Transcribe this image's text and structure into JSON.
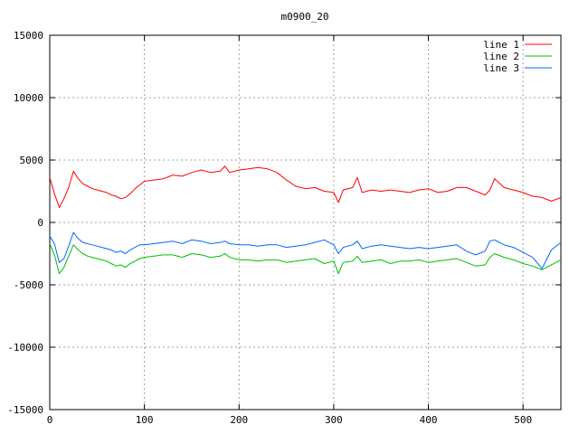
{
  "chart_data": {
    "type": "line",
    "title": "m0900_20",
    "xlabel": "",
    "ylabel": "",
    "xlim": [
      0,
      540
    ],
    "ylim": [
      -15000,
      15000
    ],
    "xticks": [
      0,
      100,
      200,
      300,
      400,
      500
    ],
    "yticks": [
      -15000,
      -10000,
      -5000,
      0,
      5000,
      10000,
      15000
    ],
    "grid": true,
    "legend_position": "top-right",
    "x": [
      0,
      5,
      10,
      15,
      20,
      25,
      30,
      35,
      40,
      45,
      50,
      55,
      60,
      65,
      70,
      75,
      80,
      85,
      90,
      95,
      100,
      110,
      120,
      130,
      140,
      150,
      160,
      170,
      180,
      185,
      190,
      200,
      210,
      220,
      230,
      240,
      250,
      260,
      270,
      280,
      290,
      300,
      305,
      310,
      320,
      325,
      330,
      340,
      350,
      360,
      370,
      380,
      390,
      400,
      410,
      420,
      430,
      440,
      450,
      460,
      465,
      470,
      480,
      490,
      500,
      510,
      520,
      530,
      540
    ],
    "series": [
      {
        "name": "line 1",
        "color": "#ff0000",
        "values": [
          3600,
          2300,
          1200,
          1900,
          2800,
          4100,
          3500,
          3100,
          2900,
          2700,
          2600,
          2500,
          2400,
          2200,
          2100,
          1900,
          2000,
          2300,
          2700,
          3000,
          3300,
          3400,
          3500,
          3800,
          3700,
          4000,
          4200,
          4000,
          4100,
          4500,
          4000,
          4200,
          4300,
          4400,
          4300,
          4000,
          3400,
          2900,
          2700,
          2800,
          2500,
          2400,
          1600,
          2600,
          2800,
          3600,
          2400,
          2600,
          2500,
          2600,
          2500,
          2400,
          2600,
          2700,
          2400,
          2500,
          2800,
          2800,
          2500,
          2200,
          2600,
          3500,
          2800,
          2600,
          2400,
          2100,
          2000,
          1700,
          2000
        ]
      },
      {
        "name": "line 2",
        "color": "#00c000",
        "values": [
          -1700,
          -2600,
          -4100,
          -3600,
          -2700,
          -1800,
          -2200,
          -2500,
          -2700,
          -2800,
          -2900,
          -3000,
          -3100,
          -3300,
          -3500,
          -3400,
          -3600,
          -3300,
          -3100,
          -2900,
          -2800,
          -2700,
          -2600,
          -2600,
          -2800,
          -2500,
          -2600,
          -2800,
          -2700,
          -2500,
          -2800,
          -3000,
          -3000,
          -3100,
          -3000,
          -3000,
          -3200,
          -3100,
          -3000,
          -2900,
          -3300,
          -3100,
          -4100,
          -3200,
          -3100,
          -2700,
          -3200,
          -3100,
          -3000,
          -3300,
          -3100,
          -3100,
          -3000,
          -3200,
          -3100,
          -3000,
          -2900,
          -3200,
          -3500,
          -3400,
          -2800,
          -2500,
          -2800,
          -3000,
          -3300,
          -3500,
          -3800,
          -3400,
          -3000
        ]
      },
      {
        "name": "line 3",
        "color": "#0066ff",
        "values": [
          -1100,
          -1700,
          -3200,
          -2900,
          -1900,
          -800,
          -1300,
          -1600,
          -1700,
          -1800,
          -1900,
          -2000,
          -2100,
          -2200,
          -2400,
          -2300,
          -2500,
          -2200,
          -2000,
          -1800,
          -1800,
          -1700,
          -1600,
          -1500,
          -1700,
          -1400,
          -1500,
          -1700,
          -1600,
          -1500,
          -1700,
          -1800,
          -1800,
          -1900,
          -1800,
          -1800,
          -2000,
          -1900,
          -1800,
          -1600,
          -1400,
          -1800,
          -2500,
          -2000,
          -1800,
          -1500,
          -2100,
          -1900,
          -1800,
          -1900,
          -2000,
          -2100,
          -2000,
          -2100,
          -2000,
          -1900,
          -1800,
          -2300,
          -2600,
          -2300,
          -1500,
          -1400,
          -1800,
          -2000,
          -2400,
          -2800,
          -3700,
          -2200,
          -1600
        ]
      }
    ]
  }
}
